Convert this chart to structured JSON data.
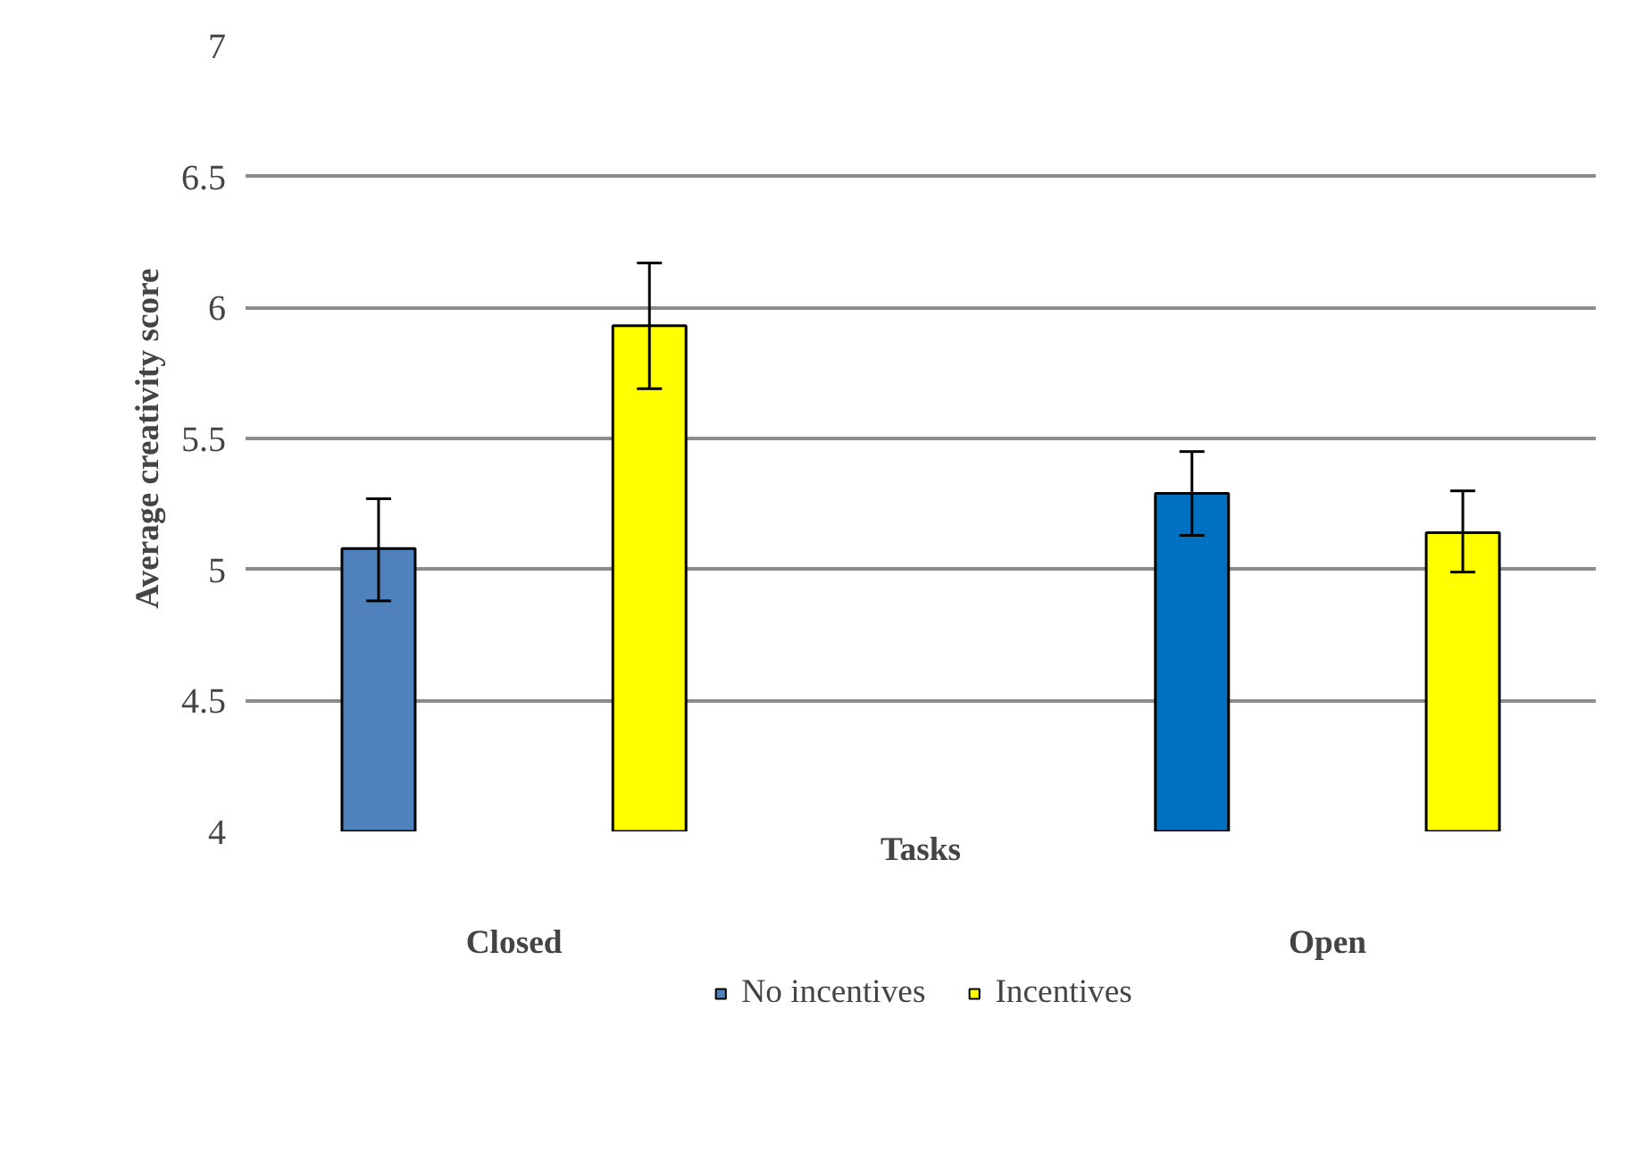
{
  "chart_data": {
    "type": "bar",
    "categories": [
      "Closed",
      "Open"
    ],
    "xlabel": "Tasks",
    "ylabel": "Average creativity score",
    "series": [
      {
        "name": "No incentives",
        "color": "#4f81bd",
        "colors": [
          "#4f81bd",
          "#0070c0"
        ],
        "values": [
          5.08,
          5.29
        ],
        "errors": [
          [
            4.88,
            5.27
          ],
          [
            5.13,
            5.45
          ]
        ]
      },
      {
        "name": "Incentives",
        "color": "#ffff00",
        "values": [
          5.93,
          5.14
        ],
        "errors": [
          [
            5.69,
            6.17
          ],
          [
            4.99,
            5.3
          ]
        ]
      }
    ],
    "ylim": [
      4,
      7
    ],
    "yticks": [
      4,
      4.5,
      5,
      5.5,
      6,
      6.5,
      7
    ],
    "grid": "y",
    "legend": "bottom"
  }
}
